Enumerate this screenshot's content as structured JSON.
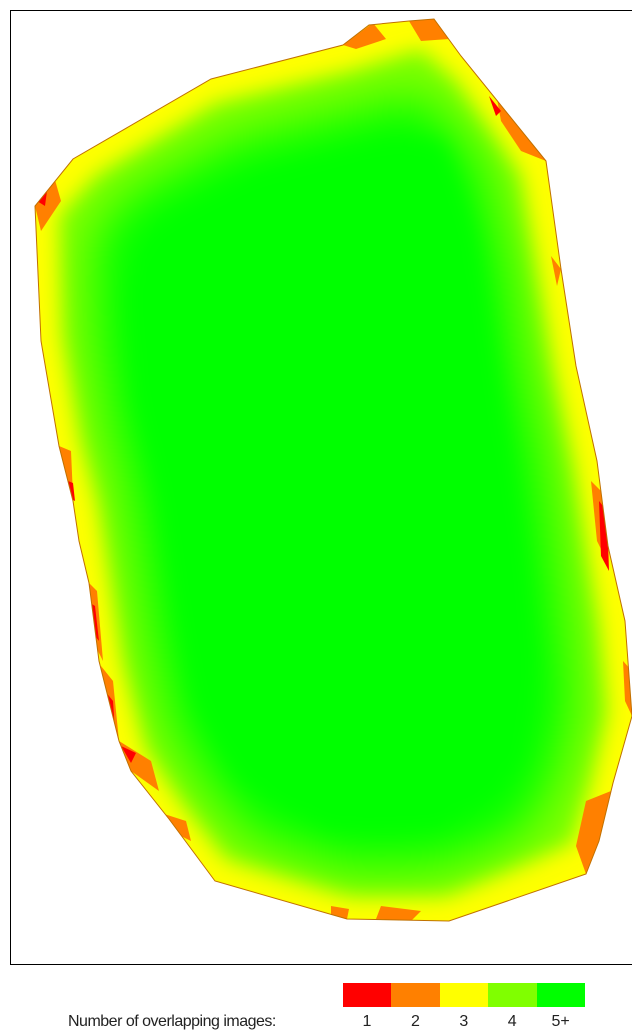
{
  "legend": {
    "caption": "Number of overlapping images:",
    "items": [
      {
        "label": "1",
        "color": "#ff0000"
      },
      {
        "label": "2",
        "color": "#ff8000"
      },
      {
        "label": "3",
        "color": "#ffff00"
      },
      {
        "label": "4",
        "color": "#80ff00"
      },
      {
        "label": "5+",
        "color": "#00ff00"
      }
    ]
  },
  "map": {
    "colors": {
      "one": "#ff0000",
      "two": "#ff8000",
      "three": "#ffff00",
      "four": "#80ff00",
      "five_plus": "#00ff00",
      "edge": "#c07000"
    }
  }
}
